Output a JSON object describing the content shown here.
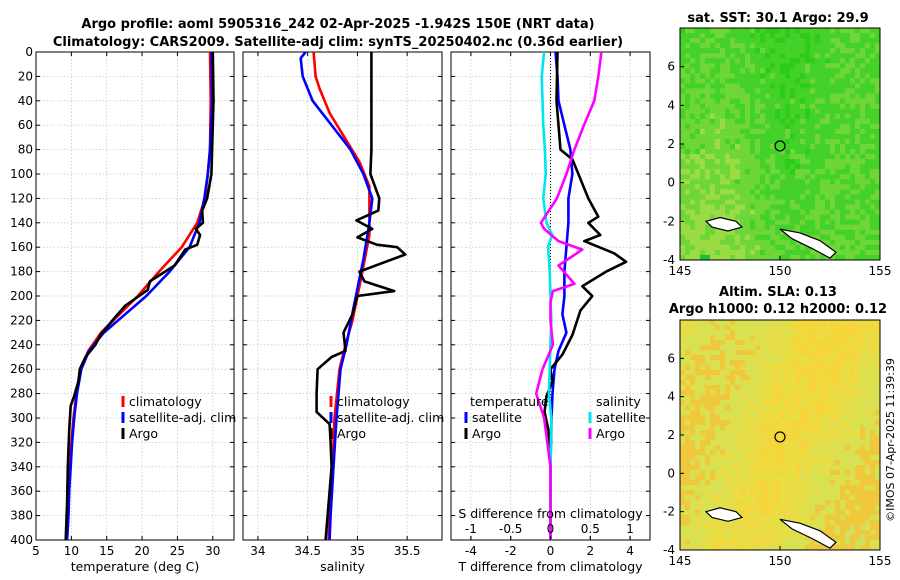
{
  "titles": {
    "line1": "Argo profile: aoml 5905316_242 02-Apr-2025 -1.942S 150E (NRT data)",
    "line2": "Climatology: CARS2009. Satellite-adj clim: synTS_20250402.nc (0.36d earlier)",
    "sst": "sat. SST: 30.1 Argo: 29.9",
    "sla1": "Altim. SLA: 0.13",
    "sla2": "Argo h1000: 0.12 h2000: 0.12"
  },
  "copyright": "©IMOS 07-Apr-2025 11:39:39",
  "colors": {
    "clim": "#ff0000",
    "sat": "#0000ff",
    "argo": "#000000",
    "salDiff": "#00e5ee",
    "salArgoDiff": "#ff00ff",
    "landOutline": "#000000"
  },
  "legend": {
    "clim": "climatology",
    "sat": "satellite-adj. clim",
    "argo": "Argo",
    "diff_temp_header": "temperature",
    "diff_sal_header": "salinity",
    "diff_sat": "satellite",
    "diff_argo": "Argo"
  },
  "chart_data": [
    {
      "type": "line",
      "id": "temperature",
      "xlabel": "temperature (deg C)",
      "xlim": [
        5,
        33
      ],
      "ylim": [
        400,
        0
      ],
      "xticks": [
        5,
        10,
        15,
        20,
        25,
        30
      ],
      "yticks": [
        0,
        20,
        40,
        60,
        80,
        100,
        120,
        140,
        160,
        180,
        200,
        220,
        240,
        260,
        280,
        300,
        320,
        340,
        360,
        380,
        400
      ],
      "series": [
        {
          "name": "climatology",
          "color": "#ff0000",
          "points": [
            [
              29.6,
              0
            ],
            [
              29.7,
              40
            ],
            [
              29.6,
              80
            ],
            [
              29.3,
              100
            ],
            [
              28.9,
              120
            ],
            [
              27.8,
              140
            ],
            [
              25.6,
              160
            ],
            [
              22.4,
              180
            ],
            [
              19.4,
              200
            ],
            [
              16.8,
              215
            ],
            [
              14.2,
              230
            ],
            [
              12.4,
              245
            ],
            [
              11.3,
              260
            ],
            [
              10.7,
              280
            ],
            [
              10.3,
              300
            ],
            [
              10.0,
              320
            ],
            [
              9.8,
              340
            ],
            [
              9.6,
              360
            ],
            [
              9.5,
              380
            ],
            [
              9.4,
              400
            ]
          ]
        },
        {
          "name": "satellite-adj. clim",
          "color": "#0000ff",
          "points": [
            [
              29.8,
              0
            ],
            [
              29.9,
              40
            ],
            [
              29.6,
              80
            ],
            [
              29.3,
              100
            ],
            [
              28.8,
              120
            ],
            [
              28.1,
              140
            ],
            [
              26.7,
              160
            ],
            [
              23.9,
              180
            ],
            [
              20.6,
              200
            ],
            [
              17.6,
              215
            ],
            [
              14.6,
              230
            ],
            [
              12.5,
              245
            ],
            [
              11.4,
              260
            ],
            [
              10.8,
              280
            ],
            [
              10.4,
              300
            ],
            [
              10.1,
              320
            ],
            [
              9.9,
              340
            ],
            [
              9.7,
              360
            ],
            [
              9.6,
              380
            ],
            [
              9.4,
              400
            ]
          ]
        },
        {
          "name": "Argo",
          "color": "#000000",
          "points": [
            [
              30.0,
              0
            ],
            [
              30.1,
              40
            ],
            [
              29.9,
              80
            ],
            [
              29.8,
              100
            ],
            [
              29.5,
              110
            ],
            [
              29.2,
              120
            ],
            [
              28.5,
              130
            ],
            [
              28.6,
              140
            ],
            [
              27.6,
              145
            ],
            [
              28.2,
              150
            ],
            [
              27.8,
              158
            ],
            [
              26.1,
              162
            ],
            [
              24.6,
              175
            ],
            [
              21.1,
              188
            ],
            [
              20.8,
              195
            ],
            [
              17.6,
              208
            ],
            [
              16.1,
              218
            ],
            [
              14.1,
              232
            ],
            [
              13.4,
              240
            ],
            [
              12.0,
              250
            ],
            [
              11.2,
              260
            ],
            [
              11.0,
              270
            ],
            [
              10.4,
              282
            ],
            [
              9.9,
              290
            ],
            [
              9.7,
              310
            ],
            [
              9.5,
              340
            ],
            [
              9.4,
              370
            ],
            [
              9.2,
              400
            ]
          ]
        }
      ]
    },
    {
      "type": "line",
      "id": "salinity",
      "xlabel": "salinity",
      "xlim": [
        33.85,
        35.85
      ],
      "ylim": [
        400,
        0
      ],
      "xticks": [
        34,
        34.5,
        35,
        35.5
      ],
      "series": [
        {
          "name": "climatology",
          "color": "#ff0000",
          "points": [
            [
              34.56,
              0
            ],
            [
              34.58,
              20
            ],
            [
              34.62,
              30
            ],
            [
              34.72,
              50
            ],
            [
              34.87,
              70
            ],
            [
              35.02,
              90
            ],
            [
              35.12,
              110
            ],
            [
              35.12,
              150
            ],
            [
              35.05,
              180
            ],
            [
              34.95,
              220
            ],
            [
              34.88,
              240
            ],
            [
              34.82,
              260
            ],
            [
              34.77,
              300
            ],
            [
              34.75,
              340
            ],
            [
              34.72,
              380
            ],
            [
              34.71,
              400
            ]
          ]
        },
        {
          "name": "satellite-adj. clim",
          "color": "#0000ff",
          "points": [
            [
              34.48,
              0
            ],
            [
              34.43,
              5
            ],
            [
              34.45,
              20
            ],
            [
              34.55,
              40
            ],
            [
              34.74,
              60
            ],
            [
              34.93,
              80
            ],
            [
              35.06,
              100
            ],
            [
              35.15,
              120
            ],
            [
              35.12,
              140
            ],
            [
              35.06,
              170
            ],
            [
              34.96,
              210
            ],
            [
              34.89,
              240
            ],
            [
              34.83,
              260
            ],
            [
              34.79,
              300
            ],
            [
              34.76,
              340
            ],
            [
              34.73,
              380
            ],
            [
              34.72,
              400
            ]
          ]
        },
        {
          "name": "Argo",
          "color": "#000000",
          "points": [
            [
              35.14,
              0
            ],
            [
              35.14,
              40
            ],
            [
              35.14,
              80
            ],
            [
              35.13,
              100
            ],
            [
              35.22,
              120
            ],
            [
              35.21,
              130
            ],
            [
              34.99,
              138
            ],
            [
              35.15,
              145
            ],
            [
              35.0,
              152
            ],
            [
              35.2,
              158
            ],
            [
              35.4,
              160
            ],
            [
              35.48,
              166
            ],
            [
              35.02,
              180
            ],
            [
              35.07,
              188
            ],
            [
              35.37,
              196
            ],
            [
              35.0,
              200
            ],
            [
              34.95,
              215
            ],
            [
              34.86,
              230
            ],
            [
              34.88,
              245
            ],
            [
              34.74,
              250
            ],
            [
              34.6,
              260
            ],
            [
              34.59,
              280
            ],
            [
              34.59,
              295
            ],
            [
              34.72,
              305
            ],
            [
              34.73,
              320
            ],
            [
              34.74,
              340
            ],
            [
              34.72,
              360
            ],
            [
              34.7,
              380
            ],
            [
              34.68,
              400
            ]
          ]
        }
      ]
    },
    {
      "type": "line",
      "id": "differences",
      "xlabel": "T difference from climatology",
      "xlabel_top": "S difference from climatology",
      "xlim": [
        -5.0,
        5.0
      ],
      "ylim": [
        400,
        0
      ],
      "xticks": [
        -4,
        -2,
        0,
        2,
        4
      ],
      "xlim_top": [
        -1.25,
        1.25
      ],
      "xticks_top": [
        -1,
        -0.5,
        0,
        0.5,
        1
      ],
      "xticklabels_top": [
        "-1",
        "-0.5",
        "0",
        "0.5",
        "1"
      ],
      "series": [
        {
          "name": "satellite",
          "group": "temperature",
          "color": "#0000ff",
          "axis": "T",
          "points": [
            [
              0.25,
              0
            ],
            [
              0.35,
              20
            ],
            [
              0.4,
              40
            ],
            [
              0.7,
              60
            ],
            [
              1.0,
              80
            ],
            [
              1.1,
              100
            ],
            [
              0.9,
              120
            ],
            [
              0.9,
              140
            ],
            [
              0.8,
              160
            ],
            [
              0.7,
              180
            ],
            [
              0.7,
              200
            ],
            [
              0.6,
              215
            ],
            [
              0.8,
              230
            ],
            [
              0.4,
              245
            ],
            [
              0.2,
              260
            ],
            [
              0.1,
              280
            ],
            [
              0.05,
              300
            ],
            [
              0.0,
              340
            ],
            [
              0.0,
              400
            ]
          ]
        },
        {
          "name": "Argo",
          "group": "temperature",
          "color": "#000000",
          "axis": "T",
          "points": [
            [
              0.35,
              0
            ],
            [
              0.3,
              40
            ],
            [
              0.4,
              60
            ],
            [
              0.5,
              80
            ],
            [
              1.1,
              88
            ],
            [
              1.4,
              100
            ],
            [
              1.9,
              120
            ],
            [
              2.4,
              135
            ],
            [
              1.9,
              140
            ],
            [
              2.5,
              150
            ],
            [
              1.7,
              155
            ],
            [
              3.2,
              165
            ],
            [
              3.8,
              172
            ],
            [
              2.8,
              180
            ],
            [
              1.6,
              192
            ],
            [
              2.1,
              200
            ],
            [
              1.5,
              212
            ],
            [
              1.3,
              222
            ],
            [
              1.1,
              232
            ],
            [
              0.6,
              248
            ],
            [
              0.0,
              260
            ],
            [
              0.1,
              270
            ],
            [
              -0.2,
              282
            ],
            [
              -0.3,
              295
            ],
            [
              -0.1,
              310
            ],
            [
              0.0,
              340
            ],
            [
              0.0,
              400
            ]
          ]
        },
        {
          "name": "satellite",
          "group": "salinity",
          "color": "#00e5ee",
          "axis": "S",
          "points": [
            [
              -0.08,
              0
            ],
            [
              -0.11,
              20
            ],
            [
              -0.1,
              40
            ],
            [
              -0.09,
              60
            ],
            [
              -0.07,
              80
            ],
            [
              -0.06,
              100
            ],
            [
              -0.09,
              120
            ],
            [
              -0.05,
              140
            ],
            [
              0.02,
              150
            ],
            [
              -0.03,
              160
            ],
            [
              -0.02,
              170
            ],
            [
              -0.01,
              180
            ],
            [
              0.0,
              200
            ],
            [
              0.01,
              220
            ],
            [
              0.0,
              240
            ],
            [
              -0.01,
              260
            ],
            [
              -0.02,
              280
            ],
            [
              0.01,
              300
            ],
            [
              0.0,
              340
            ],
            [
              0.0,
              400
            ]
          ]
        },
        {
          "name": "Argo",
          "group": "salinity",
          "color": "#ff00ff",
          "axis": "S",
          "points": [
            [
              0.64,
              0
            ],
            [
              0.6,
              20
            ],
            [
              0.55,
              40
            ],
            [
              0.42,
              60
            ],
            [
              0.3,
              80
            ],
            [
              0.2,
              100
            ],
            [
              0.08,
              120
            ],
            [
              -0.12,
              140
            ],
            [
              -0.08,
              145
            ],
            [
              0.1,
              155
            ],
            [
              0.4,
              162
            ],
            [
              0.1,
              175
            ],
            [
              0.3,
              190
            ],
            [
              0.03,
              196
            ],
            [
              0.0,
              205
            ],
            [
              0.0,
              220
            ],
            [
              0.03,
              240
            ],
            [
              -0.1,
              260
            ],
            [
              -0.18,
              280
            ],
            [
              -0.08,
              300
            ],
            [
              0.0,
              340
            ],
            [
              0.0,
              400
            ]
          ]
        }
      ]
    },
    {
      "type": "heatmap",
      "id": "sst_map",
      "title": "sat. SST: 30.1 Argo: 29.9",
      "xlim": [
        145,
        155
      ],
      "ylim": [
        -4,
        8
      ],
      "xticks": [
        145,
        150,
        155
      ],
      "yticks": [
        -4,
        -2,
        0,
        2,
        4,
        6
      ],
      "marker": [
        150,
        1.9
      ],
      "colors": [
        "#2ecc1a",
        "#44d12a",
        "#6fd63a",
        "#9bdc45",
        "#1fbf3a"
      ]
    },
    {
      "type": "heatmap",
      "id": "sla_map",
      "title": "Altim. SLA: 0.13",
      "subtitle": "Argo h1000: 0.12 h2000: 0.12",
      "xlim": [
        145,
        155
      ],
      "ylim": [
        -4,
        8
      ],
      "xticks": [
        145,
        150,
        155
      ],
      "yticks": [
        -4,
        -2,
        0,
        2,
        4,
        6
      ],
      "marker": [
        150,
        1.9
      ],
      "colors": [
        "#f5d53a",
        "#e8dd45",
        "#d9e052",
        "#f0c83c",
        "#cfe05e"
      ]
    }
  ]
}
